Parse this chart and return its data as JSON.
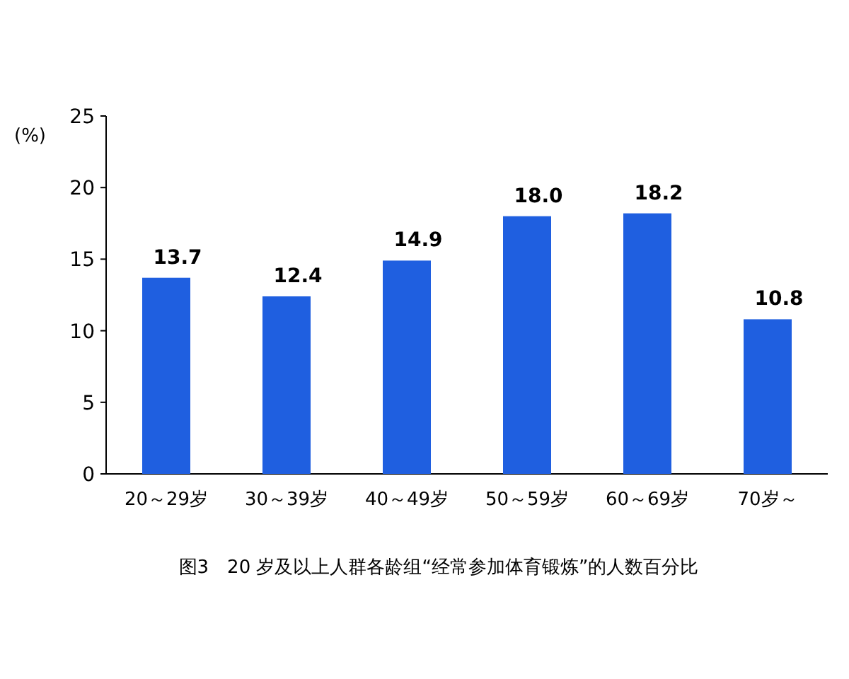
{
  "chart_data": {
    "type": "bar",
    "title": "图3　20 岁及以上人群各龄组“经常参加体育锻炼”的人数百分比",
    "ylabel": "(%)",
    "categories": [
      "20～29岁",
      "30～39岁",
      "40～49岁",
      "50～59岁",
      "60～69岁",
      "70岁～"
    ],
    "values": [
      13.7,
      12.4,
      14.9,
      18.0,
      18.2,
      10.8
    ],
    "value_labels": [
      "13.7",
      "12.4",
      "14.9",
      "18.0",
      "18.2",
      "10.8"
    ],
    "color": "#1f5fe0",
    "ylim": [
      0,
      25
    ],
    "yticks": [
      0,
      5,
      10,
      15,
      20,
      25
    ],
    "grid": false
  }
}
